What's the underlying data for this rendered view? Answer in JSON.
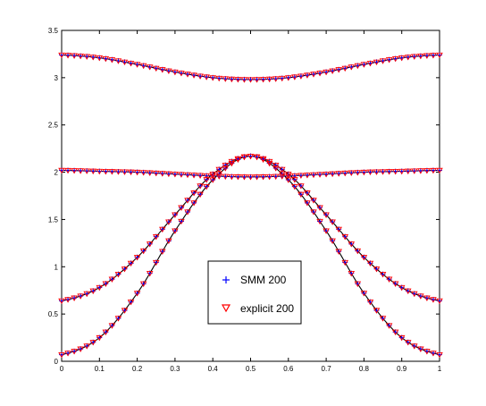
{
  "chart_data": {
    "type": "scatter",
    "title": "",
    "xlabel": "",
    "ylabel": "",
    "xlim": [
      0,
      1
    ],
    "ylim": [
      0,
      3.5
    ],
    "grid": false,
    "x_ticks": [
      "0",
      "0.1",
      "0.2",
      "0.3",
      "0.4",
      "0.5",
      "0.6",
      "0.7",
      "0.8",
      "0.9",
      "1"
    ],
    "y_ticks": [
      "0",
      "0.5",
      "1",
      "1.5",
      "2",
      "2.5",
      "3",
      "3.5"
    ],
    "legend": {
      "position": "lower-center"
    },
    "colors": {
      "line": "#000000",
      "smm": "#0000ff",
      "explicit": "#ff0000"
    },
    "markers": {
      "smm": "plus",
      "explicit": "triangle-down"
    },
    "series": [
      {
        "name": "SMM 200",
        "marker": "plus",
        "color": "#0000ff",
        "curves": [
          {
            "x": [
              0,
              0.1,
              0.2,
              0.3,
              0.4,
              0.5,
              0.6,
              0.7,
              0.8,
              0.9,
              1
            ],
            "y": [
              3.24,
              3.21,
              3.14,
              3.06,
              3.0,
              2.98,
              3.0,
              3.06,
              3.14,
              3.21,
              3.24
            ]
          },
          {
            "x": [
              0,
              0.1,
              0.2,
              0.3,
              0.4,
              0.5,
              0.6,
              0.7,
              0.8,
              0.9,
              1
            ],
            "y": [
              2.02,
              2.01,
              2.0,
              1.98,
              1.96,
              1.95,
              1.96,
              1.98,
              2.0,
              2.01,
              2.02
            ]
          },
          {
            "x": [
              0,
              0.1,
              0.2,
              0.3,
              0.4,
              0.5,
              0.6,
              0.7,
              0.8,
              0.9,
              1
            ],
            "y": [
              0.64,
              0.78,
              1.1,
              1.55,
              1.98,
              2.17,
              1.98,
              1.55,
              1.1,
              0.78,
              0.64
            ]
          },
          {
            "x": [
              0,
              0.1,
              0.2,
              0.3,
              0.4,
              0.5,
              0.6,
              0.7,
              0.8,
              0.9,
              1
            ],
            "y": [
              0.07,
              0.25,
              0.72,
              1.38,
              1.92,
              2.17,
              1.92,
              1.38,
              0.72,
              0.25,
              0.07
            ]
          }
        ]
      },
      {
        "name": "explicit 200",
        "marker": "triangle-down",
        "color": "#ff0000",
        "curves": [
          {
            "x": [
              0,
              0.1,
              0.2,
              0.3,
              0.4,
              0.5,
              0.6,
              0.7,
              0.8,
              0.9,
              1
            ],
            "y": [
              3.24,
              3.21,
              3.14,
              3.06,
              3.0,
              2.98,
              3.0,
              3.06,
              3.14,
              3.21,
              3.24
            ]
          },
          {
            "x": [
              0,
              0.1,
              0.2,
              0.3,
              0.4,
              0.5,
              0.6,
              0.7,
              0.8,
              0.9,
              1
            ],
            "y": [
              2.02,
              2.01,
              2.0,
              1.98,
              1.96,
              1.95,
              1.96,
              1.98,
              2.0,
              2.01,
              2.02
            ]
          },
          {
            "x": [
              0,
              0.1,
              0.2,
              0.3,
              0.4,
              0.5,
              0.6,
              0.7,
              0.8,
              0.9,
              1
            ],
            "y": [
              0.64,
              0.78,
              1.1,
              1.55,
              1.98,
              2.17,
              1.98,
              1.55,
              1.1,
              0.78,
              0.64
            ]
          },
          {
            "x": [
              0,
              0.1,
              0.2,
              0.3,
              0.4,
              0.5,
              0.6,
              0.7,
              0.8,
              0.9,
              1
            ],
            "y": [
              0.07,
              0.25,
              0.72,
              1.38,
              1.92,
              2.17,
              1.92,
              1.38,
              0.72,
              0.25,
              0.07
            ]
          }
        ]
      }
    ]
  }
}
